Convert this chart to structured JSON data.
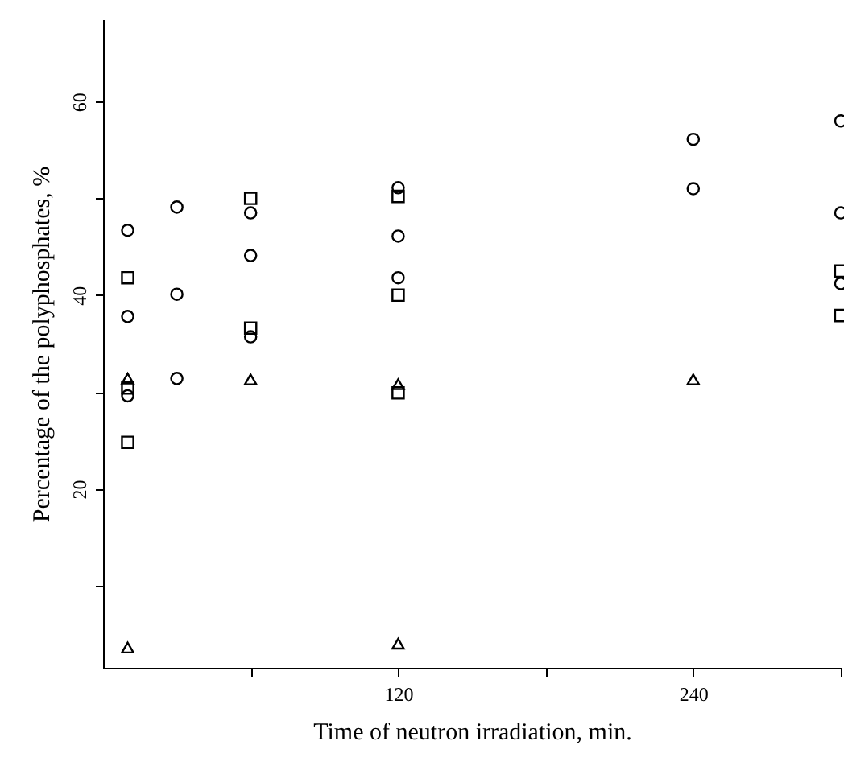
{
  "chart_data": {
    "type": "scatter",
    "xlabel": "Time of neutron irradiation, min.",
    "ylabel": "Percentage of the polyphosphates, %",
    "xlim": [
      0,
      300
    ],
    "ylim": [
      1.5,
      68.5
    ],
    "xticks": [
      {
        "value": 60,
        "label": null
      },
      120,
      {
        "value": 180,
        "label": null
      },
      240,
      {
        "value": 300,
        "label": null
      }
    ],
    "yticks": [
      {
        "value": 10,
        "label": null
      },
      20,
      {
        "value": 30,
        "label": null
      },
      40,
      {
        "value": 50,
        "label": null
      },
      60
    ],
    "grid": false,
    "series": [
      {
        "color": "#000000",
        "marker": "circle",
        "x": [
          10,
          30,
          60,
          120,
          240,
          300
        ],
        "values": [
          46.7,
          49.1,
          48.5,
          51.1,
          51.0,
          48.5
        ]
      },
      {
        "color": "#000000",
        "marker": "circle",
        "x": [
          10,
          30,
          60,
          120,
          240,
          300
        ],
        "values": [
          37.8,
          40.1,
          44.1,
          46.1,
          56.1,
          58.0
        ]
      },
      {
        "color": "#000000",
        "marker": "square",
        "x": [
          10,
          60,
          120,
          300
        ],
        "values": [
          41.8,
          50.0,
          50.2,
          42.5
        ]
      },
      {
        "color": "#000000",
        "marker": "square",
        "x": [
          10,
          60,
          120,
          300
        ],
        "values": [
          30.4,
          36.6,
          40.0,
          37.9
        ]
      },
      {
        "color": "#000000",
        "marker": "triangle",
        "x": [
          10,
          60,
          120,
          240
        ],
        "values": [
          31.4,
          31.3,
          30.8,
          31.3
        ]
      },
      {
        "color": "#000000",
        "marker": "triangle",
        "x": [
          10,
          120
        ],
        "values": [
          3.6,
          4.0
        ]
      },
      {
        "color": "#000000",
        "marker": "circle",
        "x": [
          10,
          30,
          60,
          120,
          300
        ],
        "values": [
          29.6,
          31.4,
          35.7,
          41.8,
          41.2
        ]
      },
      {
        "color": "#000000",
        "marker": "square",
        "x": [
          10,
          120
        ],
        "values": [
          24.8,
          29.9
        ]
      }
    ]
  }
}
